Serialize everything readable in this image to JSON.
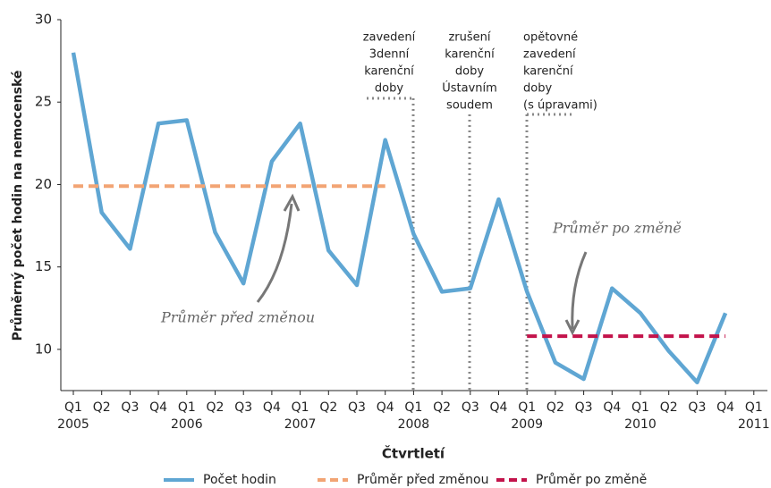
{
  "chart_data": {
    "type": "line",
    "y_label": "Průměrný počet hodin na nemocenské",
    "x_label": "Čtvrtletí",
    "categories": [
      "Q1",
      "Q2",
      "Q3",
      "Q4",
      "Q1",
      "Q2",
      "Q3",
      "Q4",
      "Q1",
      "Q2",
      "Q3",
      "Q4",
      "Q1",
      "Q2",
      "Q3",
      "Q4",
      "Q1",
      "Q2",
      "Q3",
      "Q4",
      "Q1",
      "Q2",
      "Q3",
      "Q4",
      "Q1"
    ],
    "year_labels": [
      "2005",
      null,
      null,
      null,
      "2006",
      null,
      null,
      null,
      "2007",
      null,
      null,
      null,
      "2008",
      null,
      null,
      null,
      "2009",
      null,
      null,
      null,
      "2010",
      null,
      null,
      null,
      "2011"
    ],
    "ylim": [
      7.5,
      30
    ],
    "yticks": [
      10,
      15,
      20,
      25,
      30
    ],
    "series": [
      {
        "name": "Počet hodin",
        "color": "#5fa6d3",
        "dashed": false,
        "values": [
          28,
          18.3,
          16.1,
          23.7,
          23.9,
          17.1,
          14,
          21.4,
          23.7,
          16,
          13.9,
          22.7,
          17,
          13.5,
          13.7,
          19.1,
          13.5,
          9.2,
          8.2,
          13.7,
          12.2,
          9.9,
          8,
          12.2,
          null
        ]
      },
      {
        "name": "Průměr před změnou",
        "color": "#f2a474",
        "dashed": true,
        "values": [
          19.9,
          19.9,
          19.9,
          19.9,
          19.9,
          19.9,
          19.9,
          19.9,
          19.9,
          19.9,
          19.9,
          19.9,
          null,
          null,
          null,
          null,
          null,
          null,
          null,
          null,
          null,
          null,
          null,
          null,
          null
        ]
      },
      {
        "name": "Průměr po změně",
        "color": "#c3134b",
        "dashed": true,
        "values": [
          null,
          null,
          null,
          null,
          null,
          null,
          null,
          null,
          null,
          null,
          null,
          null,
          null,
          null,
          null,
          null,
          10.8,
          10.8,
          10.8,
          10.8,
          10.8,
          10.8,
          10.8,
          10.8,
          null
        ]
      }
    ],
    "events": [
      [
        "zavedení",
        "3denní",
        "karenční",
        "doby"
      ],
      [
        "zrušení",
        "karenční",
        "doby",
        "Ústavním",
        "soudem"
      ],
      [
        "opětovné",
        "zavedení",
        "karenční",
        "doby",
        "(s úpravami)"
      ]
    ],
    "notes": [
      "Průměr před změnou",
      "Průměr po změně"
    ]
  }
}
